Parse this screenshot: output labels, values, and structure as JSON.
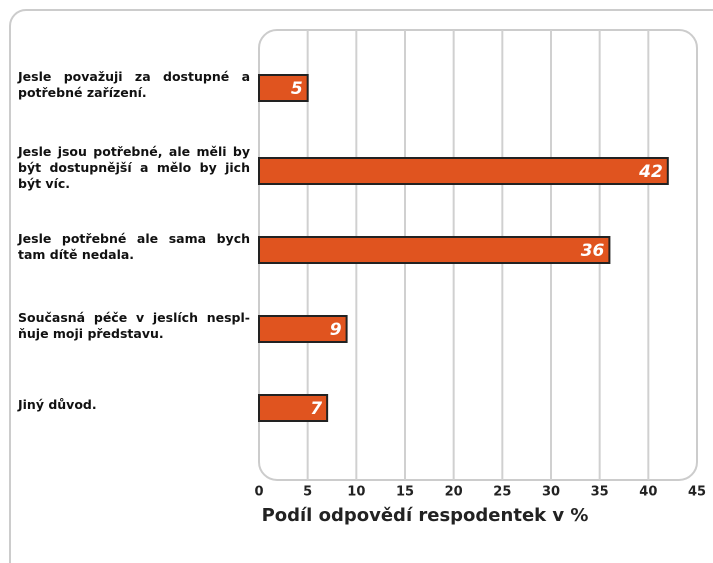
{
  "chart_data": {
    "type": "barh",
    "categories": [
      "Jesle považuji za dostupné a potřebné zařízení.",
      "Jesle jsou potřebné, ale měli by být dostupnější a mělo by jich být víc.",
      "Jesle potřebné ale sama bych tam dítě nedala.",
      "Současná péče v jeslích nespl­ňuje moji představu.",
      "Jiný důvod."
    ],
    "values": [
      5,
      42,
      36,
      9,
      7
    ],
    "color": "#e0541f",
    "xlabel": "Podíl odpovědí respodentek v %",
    "xlim": [
      0,
      45
    ],
    "xticks": [
      0,
      5,
      10,
      15,
      20,
      25,
      30,
      35,
      40,
      45
    ],
    "grid": true
  }
}
